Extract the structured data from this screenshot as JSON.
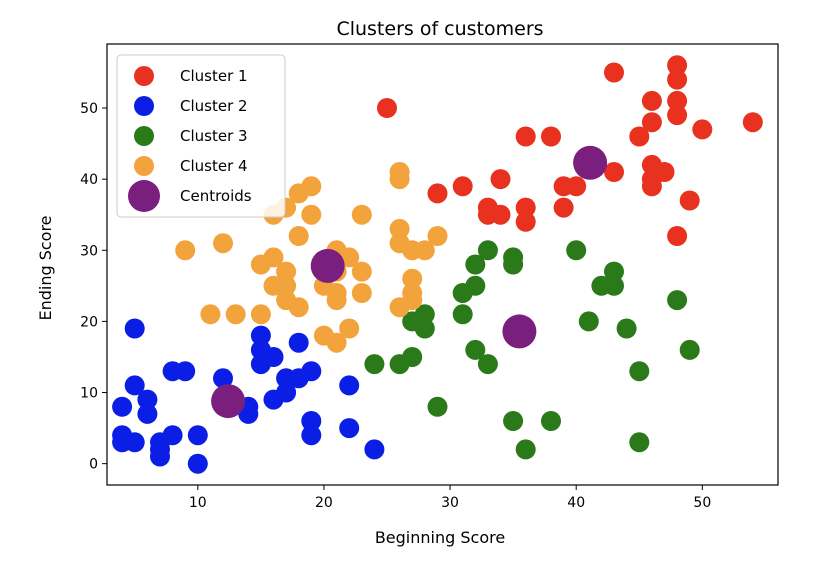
{
  "chart_data": {
    "type": "scatter",
    "title": "Clusters of customers",
    "xlabel": "Beginning Score",
    "ylabel": "Ending Score",
    "xlim": [
      2.8,
      56.0
    ],
    "ylim": [
      -3.0,
      59.0
    ],
    "xticks": [
      10,
      20,
      30,
      40,
      50
    ],
    "yticks": [
      0,
      10,
      20,
      30,
      40,
      50
    ],
    "grid": false,
    "legend_position": "top-left",
    "series": [
      {
        "name": "Cluster 1",
        "color": "#e8311f",
        "points": [
          [
            25,
            50
          ],
          [
            43,
            55
          ],
          [
            48,
            56
          ],
          [
            48,
            54
          ],
          [
            46,
            51
          ],
          [
            48,
            51
          ],
          [
            48,
            49
          ],
          [
            46,
            48
          ],
          [
            54,
            48
          ],
          [
            45,
            46
          ],
          [
            50,
            47
          ],
          [
            36,
            46
          ],
          [
            38,
            46
          ],
          [
            41,
            42
          ],
          [
            46,
            42
          ],
          [
            47,
            41
          ],
          [
            43,
            41
          ],
          [
            46,
            40
          ],
          [
            40,
            39
          ],
          [
            39,
            39
          ],
          [
            46,
            39
          ],
          [
            31,
            39
          ],
          [
            29,
            38
          ],
          [
            34,
            40
          ],
          [
            49,
            37
          ],
          [
            33,
            36
          ],
          [
            36,
            36
          ],
          [
            39,
            36
          ],
          [
            33,
            35
          ],
          [
            34,
            35
          ],
          [
            36,
            34
          ],
          [
            48,
            32
          ]
        ]
      },
      {
        "name": "Cluster 2",
        "color": "#0a1ee6",
        "points": [
          [
            5,
            19
          ],
          [
            15,
            18
          ],
          [
            18,
            17
          ],
          [
            15,
            16
          ],
          [
            16,
            15
          ],
          [
            15,
            14
          ],
          [
            19,
            13
          ],
          [
            8,
            13
          ],
          [
            9,
            13
          ],
          [
            12,
            12
          ],
          [
            17,
            12
          ],
          [
            18,
            12
          ],
          [
            5,
            11
          ],
          [
            17,
            10
          ],
          [
            16,
            9
          ],
          [
            22,
            11
          ],
          [
            6,
            9
          ],
          [
            12,
            9
          ],
          [
            14,
            8
          ],
          [
            4,
            8
          ],
          [
            14,
            7
          ],
          [
            6,
            7
          ],
          [
            19,
            6
          ],
          [
            22,
            5
          ],
          [
            4,
            4
          ],
          [
            8,
            4
          ],
          [
            10,
            4
          ],
          [
            19,
            4
          ],
          [
            4,
            3
          ],
          [
            5,
            3
          ],
          [
            7,
            3
          ],
          [
            7,
            2
          ],
          [
            7,
            1
          ],
          [
            24,
            2
          ],
          [
            10,
            0
          ]
        ]
      },
      {
        "name": "Cluster 3",
        "color": "#2a7a1a",
        "points": [
          [
            33,
            30
          ],
          [
            40,
            30
          ],
          [
            35,
            29
          ],
          [
            32,
            28
          ],
          [
            35,
            28
          ],
          [
            43,
            27
          ],
          [
            43,
            25
          ],
          [
            42,
            25
          ],
          [
            32,
            25
          ],
          [
            31,
            24
          ],
          [
            48,
            23
          ],
          [
            28,
            21
          ],
          [
            31,
            21
          ],
          [
            27,
            20
          ],
          [
            41,
            20
          ],
          [
            28,
            19
          ],
          [
            44,
            19
          ],
          [
            32,
            16
          ],
          [
            49,
            16
          ],
          [
            27,
            15
          ],
          [
            24,
            14
          ],
          [
            26,
            14
          ],
          [
            33,
            14
          ],
          [
            45,
            13
          ],
          [
            29,
            8
          ],
          [
            35,
            6
          ],
          [
            38,
            6
          ],
          [
            45,
            3
          ],
          [
            36,
            2
          ]
        ]
      },
      {
        "name": "Cluster 4",
        "color": "#f3a33c",
        "points": [
          [
            26,
            41
          ],
          [
            26,
            40
          ],
          [
            18,
            38
          ],
          [
            19,
            39
          ],
          [
            17,
            36
          ],
          [
            16,
            35
          ],
          [
            19,
            35
          ],
          [
            23,
            35
          ],
          [
            18,
            32
          ],
          [
            29,
            32
          ],
          [
            26,
            33
          ],
          [
            21,
            30
          ],
          [
            28,
            30
          ],
          [
            9,
            30
          ],
          [
            12,
            31
          ],
          [
            16,
            29
          ],
          [
            26,
            31
          ],
          [
            27,
            30
          ],
          [
            22,
            29
          ],
          [
            20,
            28
          ],
          [
            15,
            28
          ],
          [
            17,
            27
          ],
          [
            21,
            27
          ],
          [
            23,
            27
          ],
          [
            27,
            26
          ],
          [
            16,
            25
          ],
          [
            17,
            25
          ],
          [
            20,
            25
          ],
          [
            21,
            24
          ],
          [
            23,
            24
          ],
          [
            17,
            23
          ],
          [
            18,
            22
          ],
          [
            21,
            23
          ],
          [
            26,
            22
          ],
          [
            11,
            21
          ],
          [
            13,
            21
          ],
          [
            15,
            21
          ],
          [
            22,
            19
          ],
          [
            20,
            18
          ],
          [
            21,
            17
          ],
          [
            27,
            24
          ],
          [
            27,
            23
          ]
        ]
      }
    ],
    "centroids": {
      "name": "Centroids",
      "color": "#7b1f7e",
      "points": [
        [
          41.1,
          42.3
        ],
        [
          12.4,
          8.8
        ],
        [
          35.5,
          18.6
        ],
        [
          20.3,
          27.8
        ]
      ]
    }
  }
}
